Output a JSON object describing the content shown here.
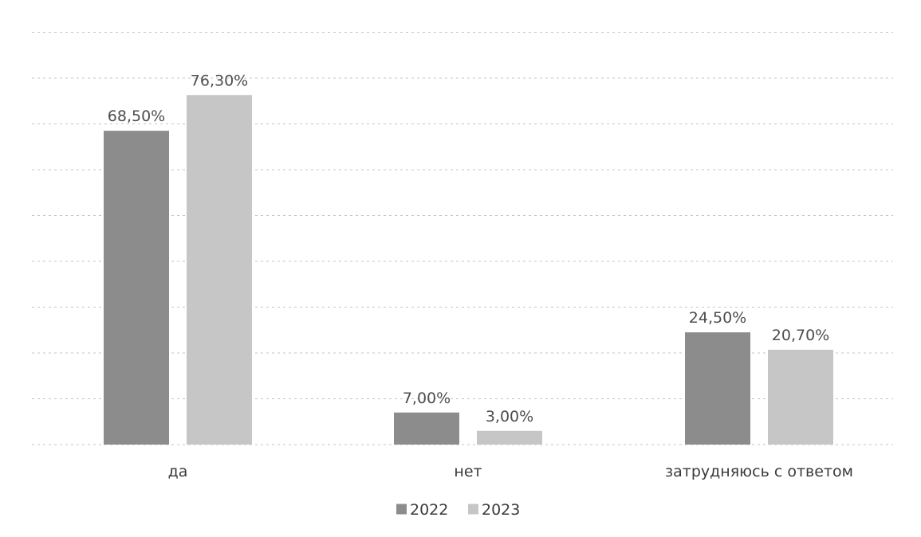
{
  "chart_data": {
    "type": "bar",
    "categories": [
      "да",
      "нет",
      "затрудняюсь с ответом"
    ],
    "series": [
      {
        "name": "2022",
        "values": [
          68.5,
          7.0,
          24.5
        ],
        "labels": [
          "68,50%",
          "7,00%",
          "24,50%"
        ],
        "color": "#8c8c8c"
      },
      {
        "name": "2023",
        "values": [
          76.3,
          3.0,
          20.7
        ],
        "labels": [
          "76,30%",
          "3,00%",
          "20,70%"
        ],
        "color": "#c6c6c6"
      }
    ],
    "ylim": [
      0,
      90
    ],
    "grid": true,
    "legend_position": "bottom"
  }
}
